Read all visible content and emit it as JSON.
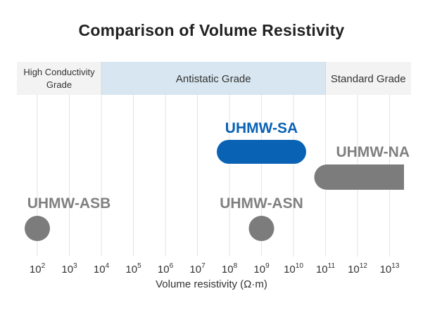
{
  "chart_data": {
    "type": "range",
    "title": "Comparison of Volume Resistivity",
    "xlabel": "Volume resistivity (Ω·m)",
    "x_scale": "log10",
    "xlim": [
      100,
      10000000000000
    ],
    "ticks": [
      {
        "value": 100,
        "base": "10",
        "exp": "2"
      },
      {
        "value": 1000,
        "base": "10",
        "exp": "3"
      },
      {
        "value": 10000,
        "base": "10",
        "exp": "4"
      },
      {
        "value": 100000,
        "base": "10",
        "exp": "5"
      },
      {
        "value": 1000000,
        "base": "10",
        "exp": "6"
      },
      {
        "value": 10000000,
        "base": "10",
        "exp": "7"
      },
      {
        "value": 100000000,
        "base": "10",
        "exp": "8"
      },
      {
        "value": 1000000000,
        "base": "10",
        "exp": "9"
      },
      {
        "value": 10000000000,
        "base": "10",
        "exp": "10"
      },
      {
        "value": 100000000000,
        "base": "10",
        "exp": "11"
      },
      {
        "value": 1000000000000,
        "base": "10",
        "exp": "12"
      },
      {
        "value": 10000000000000,
        "base": "10",
        "exp": "13"
      }
    ],
    "grades": [
      {
        "label": [
          "High Conductivity",
          "Grade"
        ],
        "from": 10,
        "to": 10000,
        "color": "#f3f3f3"
      },
      {
        "label": [
          "Antistatic Grade"
        ],
        "from": 10000,
        "to": 100000000000,
        "color": "#d7e6f0"
      },
      {
        "label": [
          "Standard Grade"
        ],
        "from": 100000000000,
        "to": 100000000000000,
        "color": "#f3f3f3"
      }
    ],
    "series": [
      {
        "name": "UHMW-SA",
        "from": 100000000,
        "to": 10000000000,
        "color": "#0a62b4",
        "label_color": "#0a62b4"
      },
      {
        "name": "UHMW-NA",
        "from": 100000000000,
        "to": 10000000000000,
        "color": "#7c7c7c",
        "label_color": "#808080"
      },
      {
        "name": "UHMW-ASB",
        "from": 100,
        "to": 100,
        "color": "#7c7c7c",
        "label_color": "#808080"
      },
      {
        "name": "UHMW-ASN",
        "from": 1000000000,
        "to": 1000000000,
        "color": "#7c7c7c",
        "label_color": "#808080"
      }
    ]
  }
}
